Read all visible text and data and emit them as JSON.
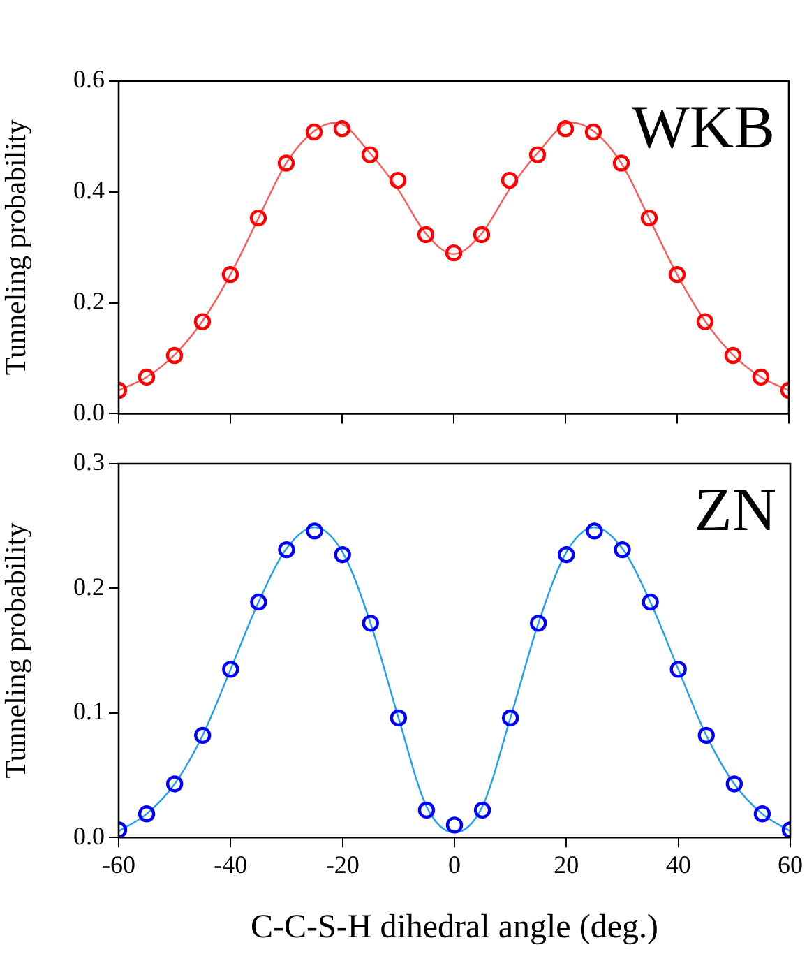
{
  "chart_data": [
    {
      "type": "scatter",
      "ylabel": "Tunneling probability",
      "annotations": [
        "WKB"
      ],
      "xlim": [
        -60,
        60
      ],
      "xticks": [
        -60,
        -40,
        -20,
        0,
        20,
        40,
        60
      ],
      "ylim": [
        0,
        0.6
      ],
      "yticks": [
        {
          "value": 0,
          "label": "0.0"
        },
        0.2,
        0.4,
        0.6
      ],
      "tick_labels": "y",
      "grid": false,
      "legend": false,
      "series": [
        {
          "marker": "circle",
          "color": "#ff0000",
          "x": [
            -60,
            -55,
            -50,
            -45,
            -40,
            -35,
            -30,
            -25,
            -20,
            -15,
            -10,
            -5,
            0,
            5,
            10,
            15,
            20,
            25,
            30,
            35,
            40,
            45,
            50,
            55,
            60
          ],
          "values": [
            0.042,
            0.066,
            0.105,
            0.166,
            0.251,
            0.353,
            0.452,
            0.508,
            0.514,
            0.467,
            0.421,
            0.323,
            0.29,
            0.323,
            0.421,
            0.467,
            0.514,
            0.508,
            0.452,
            0.353,
            0.251,
            0.166,
            0.105,
            0.066,
            0.042
          ]
        },
        {
          "type": "line",
          "marker": "none",
          "color": "#ff5a5a",
          "x": [
            -60,
            -55,
            -50,
            -45,
            -40,
            -35,
            -30,
            -25,
            -21,
            -15,
            -10,
            -5,
            0,
            5,
            10,
            15,
            21,
            25,
            30,
            35,
            40,
            45,
            50,
            55,
            60
          ],
          "values": [
            0.042,
            0.066,
            0.106,
            0.167,
            0.251,
            0.352,
            0.452,
            0.51,
            0.525,
            0.47,
            0.405,
            0.325,
            0.288,
            0.325,
            0.405,
            0.47,
            0.525,
            0.51,
            0.452,
            0.352,
            0.251,
            0.167,
            0.106,
            0.066,
            0.042
          ]
        }
      ]
    },
    {
      "type": "scatter",
      "ylabel": "Tunneling probability",
      "xlabel": "C-C-S-H dihedral angle (deg.)",
      "annotations": [
        "ZN"
      ],
      "xlim": [
        -60,
        60
      ],
      "xticks": [
        -60,
        -40,
        -20,
        0,
        20,
        40,
        60
      ],
      "ylim": [
        0,
        0.3
      ],
      "yticks": [
        {
          "value": 0,
          "label": "0.0"
        },
        0.1,
        0.2,
        0.3
      ],
      "grid": false,
      "legend": false,
      "series": [
        {
          "marker": "circle",
          "color": "#0000ff",
          "x": [
            -60,
            -55,
            -50,
            -45,
            -40,
            -35,
            -30,
            -25,
            -20,
            -15,
            -10,
            -5,
            0,
            5,
            10,
            15,
            20,
            25,
            30,
            35,
            40,
            45,
            50,
            55,
            60
          ],
          "values": [
            0.006,
            0.019,
            0.043,
            0.082,
            0.135,
            0.189,
            0.231,
            0.246,
            0.227,
            0.172,
            0.096,
            0.022,
            0.01,
            0.022,
            0.096,
            0.172,
            0.227,
            0.246,
            0.231,
            0.189,
            0.135,
            0.082,
            0.043,
            0.019,
            0.006
          ]
        },
        {
          "type": "line",
          "marker": "none",
          "color": "#1ea0f0",
          "x": [
            -60,
            -55,
            -50,
            -45,
            -40,
            -35,
            -30,
            -25,
            -20,
            -15,
            -10,
            -5,
            0,
            5,
            10,
            15,
            20,
            25,
            30,
            35,
            40,
            45,
            50,
            55,
            60
          ],
          "values": [
            0.005,
            0.019,
            0.043,
            0.082,
            0.135,
            0.189,
            0.232,
            0.249,
            0.229,
            0.172,
            0.096,
            0.025,
            0.004,
            0.025,
            0.096,
            0.172,
            0.229,
            0.249,
            0.232,
            0.189,
            0.135,
            0.082,
            0.043,
            0.019,
            0.005
          ]
        }
      ]
    }
  ]
}
